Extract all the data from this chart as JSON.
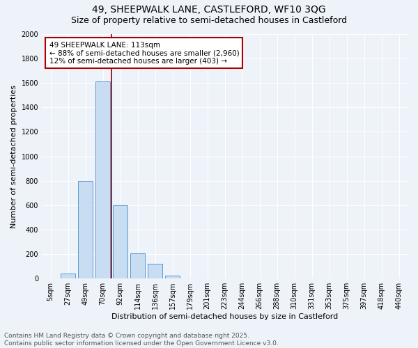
{
  "title1": "49, SHEEPWALK LANE, CASTLEFORD, WF10 3QG",
  "title2": "Size of property relative to semi-detached houses in Castleford",
  "xlabel": "Distribution of semi-detached houses by size in Castleford",
  "ylabel": "Number of semi-detached properties",
  "categories": [
    "5sqm",
    "27sqm",
    "49sqm",
    "70sqm",
    "92sqm",
    "114sqm",
    "136sqm",
    "157sqm",
    "179sqm",
    "201sqm",
    "223sqm",
    "244sqm",
    "266sqm",
    "288sqm",
    "310sqm",
    "331sqm",
    "353sqm",
    "375sqm",
    "397sqm",
    "418sqm",
    "440sqm"
  ],
  "values": [
    0,
    40,
    800,
    1610,
    600,
    205,
    120,
    25,
    0,
    0,
    0,
    0,
    0,
    0,
    0,
    0,
    0,
    0,
    0,
    0,
    0
  ],
  "bar_color": "#c9ddf2",
  "bar_edge_color": "#5b9bd5",
  "annotation_text": "49 SHEEPWALK LANE: 113sqm\n← 88% of semi-detached houses are smaller (2,960)\n12% of semi-detached houses are larger (403) →",
  "annotation_box_color": "#ffffff",
  "annotation_box_edge": "#aa0000",
  "vline_color": "#8b0000",
  "vline_x": 3.5,
  "ylim": [
    0,
    2000
  ],
  "yticks": [
    0,
    200,
    400,
    600,
    800,
    1000,
    1200,
    1400,
    1600,
    1800,
    2000
  ],
  "background_color": "#eef2f9",
  "grid_color": "#ffffff",
  "footer_text": "Contains HM Land Registry data © Crown copyright and database right 2025.\nContains public sector information licensed under the Open Government Licence v3.0.",
  "title1_fontsize": 10,
  "title2_fontsize": 9,
  "xlabel_fontsize": 8,
  "ylabel_fontsize": 8,
  "tick_fontsize": 7,
  "annotation_fontsize": 7.5,
  "footer_fontsize": 6.5
}
